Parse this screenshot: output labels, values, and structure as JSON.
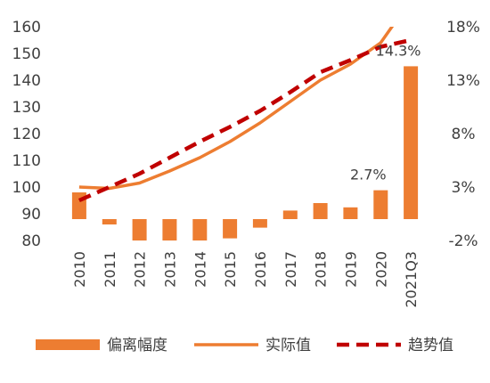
{
  "chart_data": {
    "type": "bar",
    "categories": [
      "2010",
      "2011",
      "2012",
      "2013",
      "2014",
      "2015",
      "2016",
      "2017",
      "2018",
      "2019",
      "2020",
      "2021Q3"
    ],
    "series": [
      {
        "name": "偏离幅度",
        "type": "bar",
        "axis": "right",
        "color": "#ED7D31",
        "values": [
          2.5,
          -0.5,
          -2.0,
          -2.0,
          -2.0,
          -1.8,
          -0.8,
          0.8,
          1.5,
          1.1,
          2.7,
          14.3
        ]
      },
      {
        "name": "实际值",
        "type": "line",
        "axis": "left",
        "color": "#ED7D31",
        "values": [
          100,
          99.5,
          101.5,
          106,
          111,
          117,
          124,
          132,
          140,
          146,
          154,
          170
        ]
      },
      {
        "name": "趋势值",
        "type": "line",
        "axis": "left",
        "color": "#C00000",
        "dashed": true,
        "values": [
          95,
          100,
          105,
          111,
          117,
          122.5,
          128.5,
          135.5,
          143,
          147.5,
          152.5,
          155
        ]
      }
    ],
    "annotations": [
      {
        "label": "14.3%",
        "category": "2021Q3",
        "series": "偏离幅度"
      },
      {
        "label": "2.7%",
        "category": "2020",
        "series": "偏离幅度"
      }
    ],
    "left_axis": {
      "ticks": [
        "80",
        "90",
        "100",
        "110",
        "120",
        "130",
        "140",
        "150",
        "160"
      ],
      "ylim": [
        80,
        160
      ]
    },
    "right_axis": {
      "ticks": [
        "-2%",
        "3%",
        "8%",
        "13%",
        "18%"
      ],
      "ylim": [
        -2,
        18
      ]
    },
    "legend": {
      "placement": "bottom"
    },
    "grid": false
  }
}
